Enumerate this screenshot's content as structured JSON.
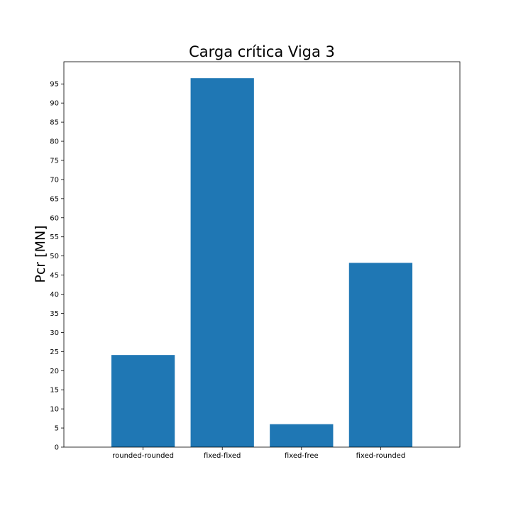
{
  "chart_data": {
    "type": "bar",
    "title": "Carga crítica Viga 3",
    "xlabel": "",
    "ylabel": "Pcr [MN]",
    "categories": [
      "rounded-rounded",
      "fixed-fixed",
      "fixed-free",
      "fixed-rounded"
    ],
    "values": [
      24.1,
      96.5,
      6.0,
      48.2
    ],
    "ylim": [
      0,
      100.8
    ],
    "yticks": [
      0,
      5,
      10,
      15,
      20,
      25,
      30,
      35,
      40,
      45,
      50,
      55,
      60,
      65,
      70,
      75,
      80,
      85,
      90,
      95
    ],
    "grid": false,
    "bar_color": "#1f77b4"
  }
}
